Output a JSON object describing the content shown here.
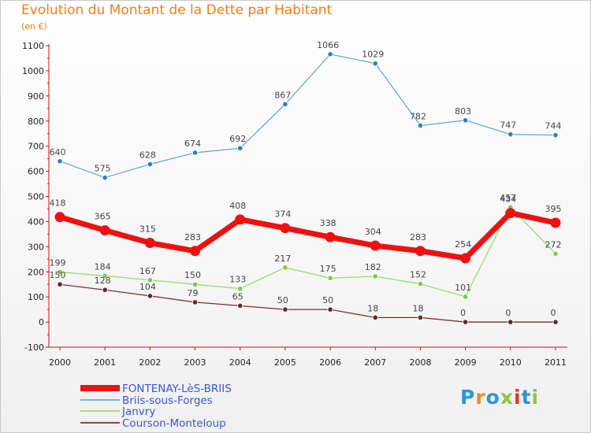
{
  "header": {
    "title": "Evolution du Montant de la Dette par Habitant",
    "subtitle": "(en €)"
  },
  "logo": {
    "text": "Proxiti",
    "letters": [
      "P",
      "r",
      "o",
      "x",
      "i",
      "t",
      "i"
    ]
  },
  "chart_data": {
    "type": "line",
    "title": "Evolution du Montant de la Dette par Habitant",
    "subtitle": "(en €)",
    "xlabel": "",
    "ylabel": "",
    "x": [
      "2000",
      "2001",
      "2002",
      "2003",
      "2004",
      "2005",
      "2006",
      "2007",
      "2008",
      "2009",
      "2010",
      "2011"
    ],
    "ylim": [
      -100,
      1100
    ],
    "yticks": [
      "-100",
      "0",
      "100",
      "200",
      "300",
      "400",
      "500",
      "600",
      "700",
      "800",
      "900",
      "1000",
      "1100"
    ],
    "grid": false,
    "legend_position": "bottom-left",
    "series": [
      {
        "name": "Briis-sous-Forges",
        "color": "#6aa8d8",
        "marker_color": "#2f7fc0",
        "values": [
          640,
          575,
          628,
          674,
          692,
          867,
          1066,
          1029,
          782,
          803,
          747,
          744
        ],
        "labels": [
          "640",
          "575",
          "628",
          "674",
          "692",
          "867",
          "1066",
          "1029",
          "782",
          "803",
          "747",
          "744"
        ]
      },
      {
        "name": "Janvry",
        "color": "#99dd66",
        "marker_color": "#77cc44",
        "values": [
          199,
          184,
          167,
          150,
          133,
          217,
          175,
          182,
          152,
          101,
          457,
          272
        ],
        "labels": [
          "199",
          "184",
          "167",
          "150",
          "133",
          "217",
          "175",
          "182",
          "152",
          "101",
          "457",
          "272"
        ]
      },
      {
        "name": "Courson-Monteloup",
        "color": "#7a2e2e",
        "marker_color": "#6b2424",
        "values": [
          150,
          128,
          104,
          79,
          65,
          50,
          50,
          18,
          18,
          0,
          0,
          0
        ],
        "labels": [
          "150",
          "128",
          "104",
          "79",
          "65",
          "50",
          "50",
          "18",
          "18",
          "0",
          "0",
          "0"
        ]
      },
      {
        "name": "FONTENAY-LèS-BRIIS",
        "color": "#ee1111",
        "marker_color": "#ee1111",
        "values": [
          418,
          365,
          315,
          283,
          408,
          374,
          338,
          304,
          283,
          254,
          434,
          395
        ],
        "labels": [
          "418",
          "365",
          "315",
          "283",
          "408",
          "374",
          "338",
          "304",
          "283",
          "254",
          "434",
          "395"
        ]
      }
    ],
    "legend": [
      {
        "name": "FONTENAY-LèS-BRIIS",
        "color": "#ee1111"
      },
      {
        "name": "Briis-sous-Forges",
        "color": "#6aa8d8"
      },
      {
        "name": "Janvry",
        "color": "#99dd66"
      },
      {
        "name": "Courson-Monteloup",
        "color": "#7a2e2e"
      }
    ]
  }
}
